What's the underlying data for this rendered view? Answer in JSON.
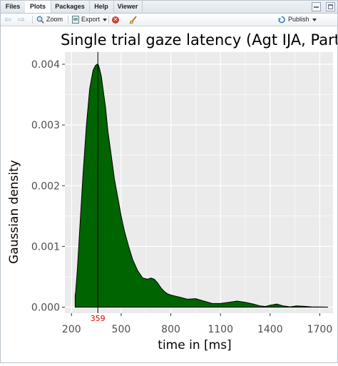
{
  "tabs": [
    {
      "label": "Files"
    },
    {
      "label": "Plots",
      "active": true
    },
    {
      "label": "Packages"
    },
    {
      "label": "Help"
    },
    {
      "label": "Viewer"
    }
  ],
  "toolbar": {
    "zoom_label": "Zoom",
    "export_label": "Export",
    "publish_label": "Publish",
    "back_icon": "arrow-left-icon",
    "forward_icon": "arrow-right-icon"
  },
  "colors": {
    "fill": "#006400",
    "panel": "#ebebeb",
    "grid": "#ffffff",
    "vline": "#000000",
    "marker_label": "#e60000"
  },
  "chart_data": {
    "type": "area",
    "title": "Single trial gaze latency (Agt IJA, Part I",
    "xlabel": "time in [ms]",
    "ylabel": "Gaussian density",
    "xlim": [
      160,
      1780
    ],
    "ylim": [
      -0.0001,
      0.0042
    ],
    "x_ticks": [
      200,
      500,
      800,
      1100,
      1400,
      1700
    ],
    "x_tick_labels": [
      "200",
      "500",
      "800",
      "1100",
      "1400",
      "1700"
    ],
    "y_ticks": [
      0,
      0.001,
      0.002,
      0.003,
      0.004
    ],
    "y_tick_labels": [
      "0.000",
      "0.001",
      "0.002",
      "0.003",
      "0.004"
    ],
    "grid": true,
    "vline_x": 359,
    "vline_label": "359",
    "x": [
      222,
      225,
      235,
      250,
      270,
      290,
      310,
      330,
      345,
      355,
      362,
      370,
      380,
      390,
      405,
      420,
      440,
      460,
      480,
      500,
      520,
      545,
      570,
      600,
      630,
      660,
      680,
      700,
      720,
      740,
      760,
      780,
      800,
      830,
      860,
      900,
      950,
      1000,
      1050,
      1100,
      1150,
      1200,
      1250,
      1300,
      1340,
      1370,
      1400,
      1440,
      1480,
      1520,
      1560,
      1600,
      1650,
      1700,
      1750
    ],
    "y": [
      0.0002,
      0.00025,
      0.0006,
      0.0013,
      0.0022,
      0.003,
      0.0036,
      0.0039,
      0.00398,
      0.004,
      0.00399,
      0.00392,
      0.0038,
      0.0036,
      0.0033,
      0.0029,
      0.0025,
      0.0021,
      0.0018,
      0.0015,
      0.00125,
      0.001,
      0.00078,
      0.0006,
      0.00048,
      0.00046,
      0.00048,
      0.00046,
      0.0004,
      0.00032,
      0.00026,
      0.00022,
      0.0002,
      0.00018,
      0.00016,
      0.00013,
      0.00014,
      0.0001,
      6e-05,
      6e-05,
      8e-05,
      0.0001,
      8e-05,
      5e-05,
      2e-05,
      1e-05,
      3e-05,
      5e-05,
      2e-05,
      5e-06,
      2e-05,
      1.5e-05,
      5e-06,
      2e-06,
      0.0
    ]
  }
}
